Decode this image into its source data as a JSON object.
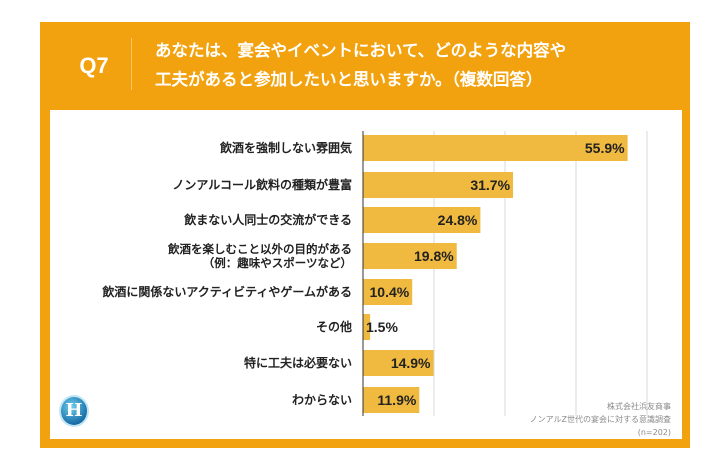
{
  "header": {
    "question_no": "Q7",
    "title_line1": "あなたは、宴会やイベントにおいて、どのような内容や",
    "title_line2": "工夫があると参加したいと思いますか。（複数回答）"
  },
  "colors": {
    "frame": "#f3a20f",
    "bar": "#f0b93f",
    "grid": "#d9d9d9"
  },
  "logo": {
    "letter": "H"
  },
  "footnote": {
    "line1": "株式会社浜友商事",
    "line2": "ノンアルZ世代の宴会に対する意識調査",
    "line3": "(n=202)"
  },
  "chart_data": {
    "type": "bar",
    "orientation": "horizontal",
    "categories": [
      "飲酒を強制しない雰囲気",
      "ノンアルコール飲料の種類が豊富",
      "飲まない人同士の交流ができる",
      "飲酒を楽しむこと以外の目的がある\n（例：趣味やスポーツなど）",
      "飲酒に関係ないアクティビティやゲームがある",
      "その他",
      "特に工夫は必要ない",
      "わからない"
    ],
    "values": [
      55.9,
      31.7,
      24.8,
      19.8,
      10.4,
      1.5,
      14.9,
      11.9
    ],
    "labels": [
      "55.9%",
      "31.7%",
      "24.8%",
      "19.8%",
      "10.4%",
      "1.5%",
      "14.9%",
      "11.9%"
    ],
    "xlim": [
      0,
      60
    ],
    "grid": true,
    "gridlines": [
      15,
      30,
      45,
      60
    ],
    "unit": "%"
  }
}
